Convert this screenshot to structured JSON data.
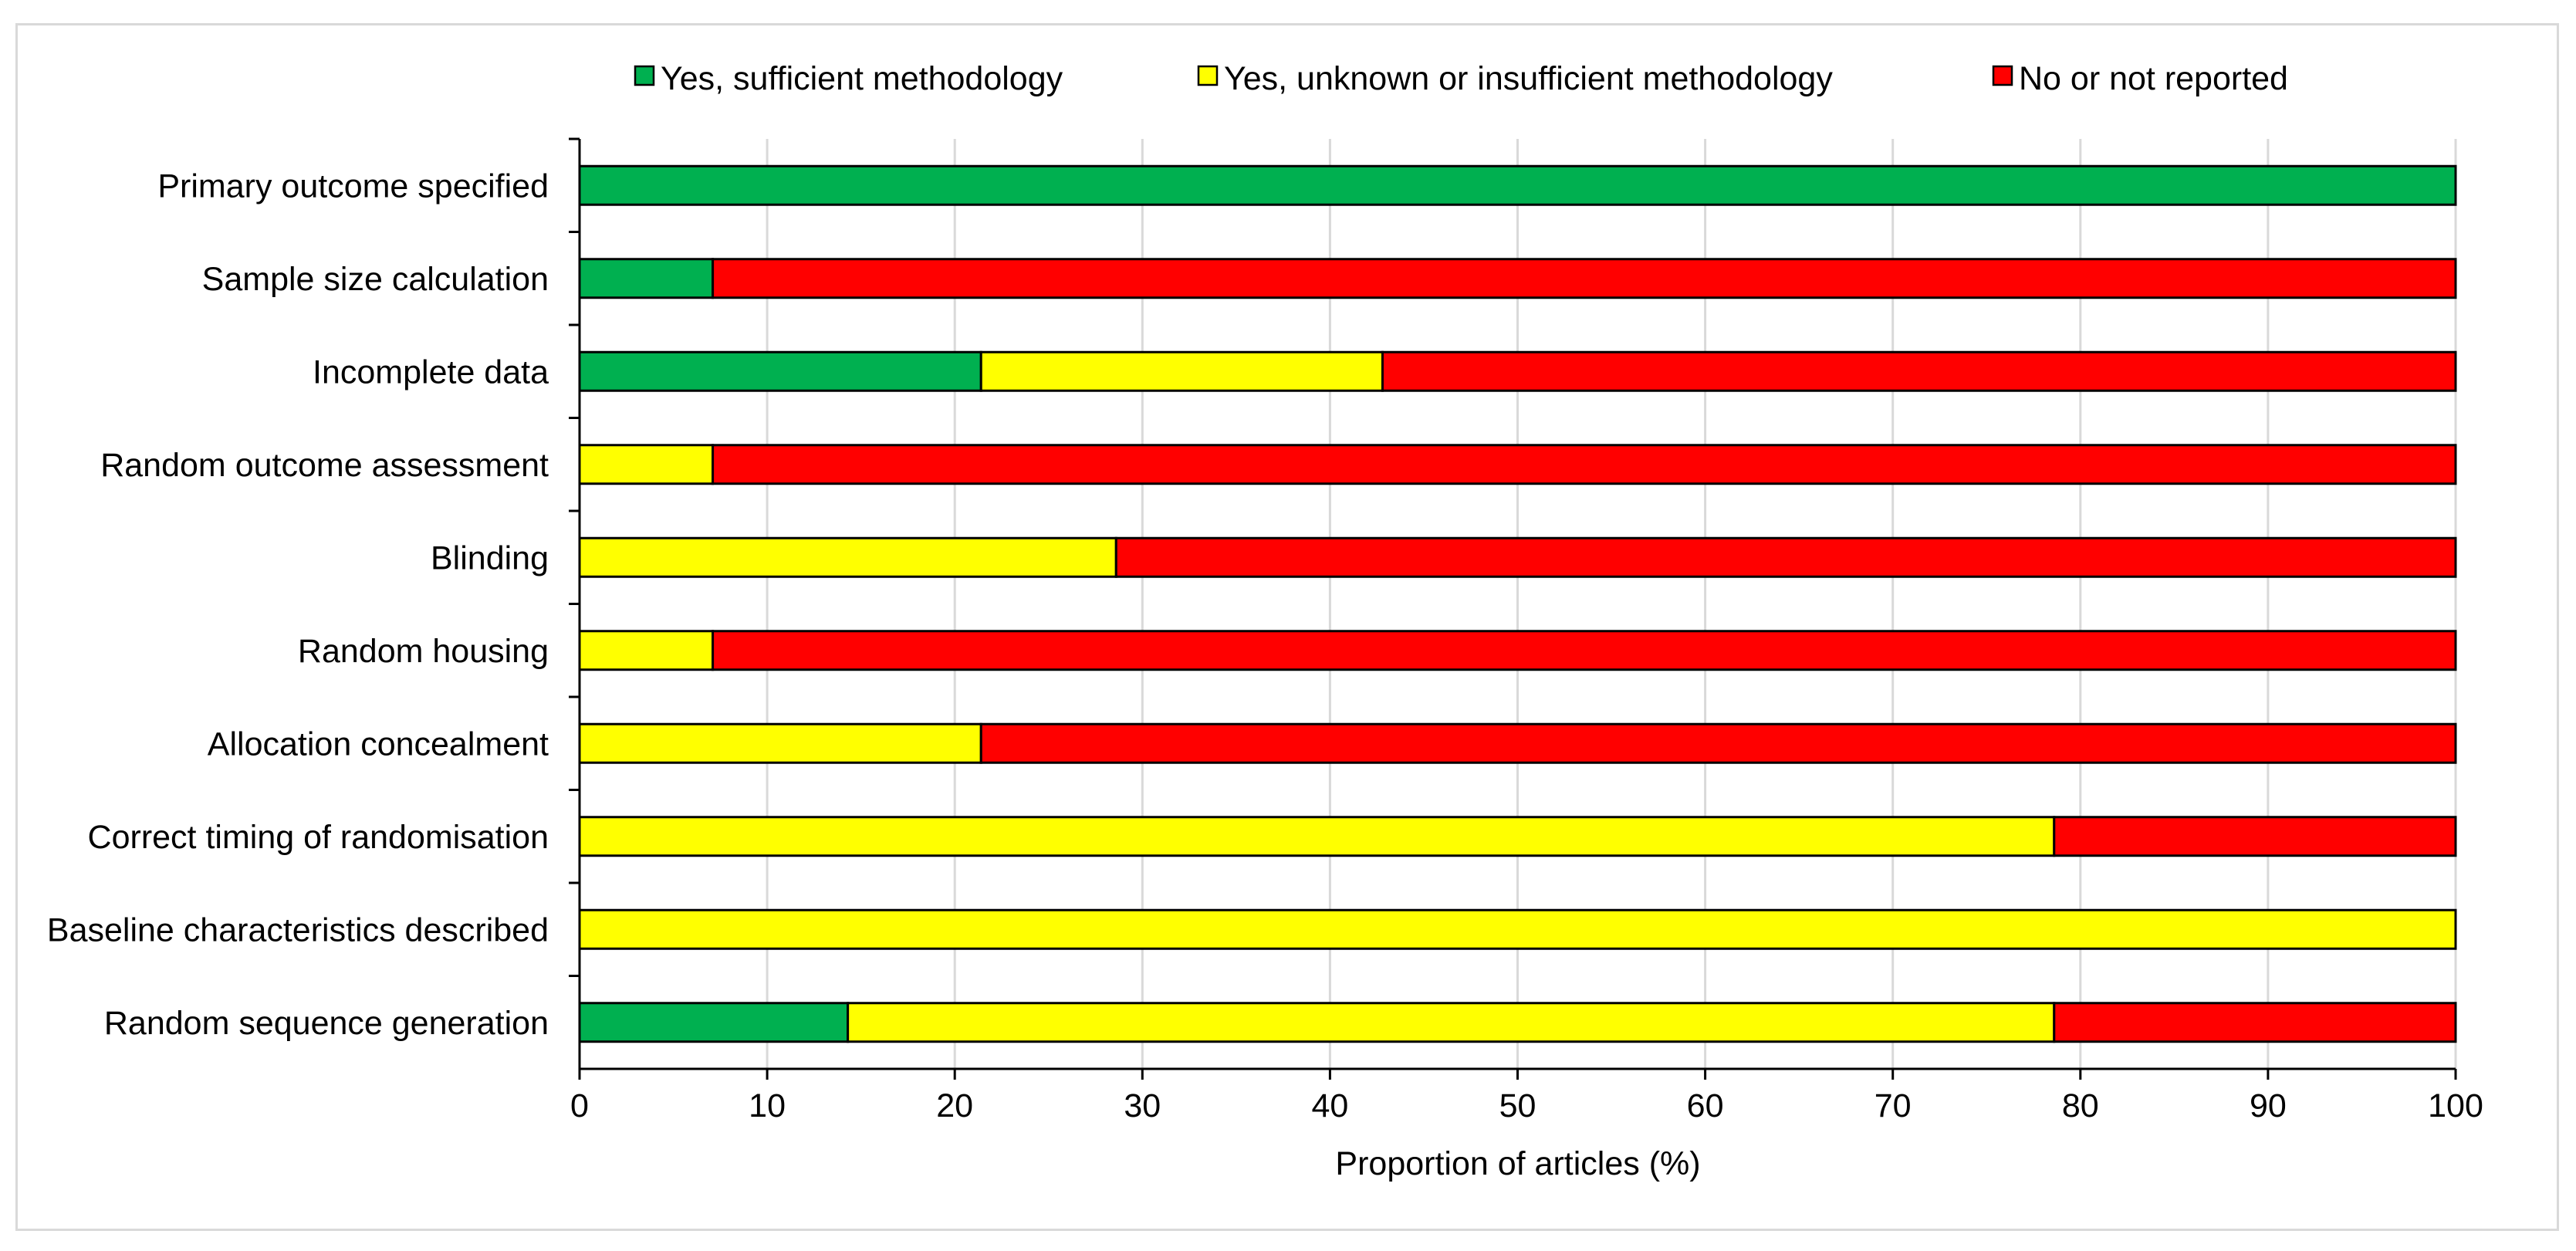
{
  "chart_data": {
    "type": "bar",
    "orientation": "horizontal",
    "stacked": true,
    "title": "",
    "xlabel": "Proportion of articles (%)",
    "ylabel": "",
    "xlim": [
      0,
      100
    ],
    "xticks": [
      0,
      10,
      20,
      30,
      40,
      50,
      60,
      70,
      80,
      90,
      100
    ],
    "grid": "vertical",
    "legend_position": "top",
    "categories": [
      "Primary outcome specified",
      "Sample size calculation",
      "Incomplete data",
      "Random outcome assessment",
      "Blinding",
      "Random housing",
      "Allocation concealment",
      "Correct timing of randomisation",
      "Baseline characteristics described",
      "Random sequence generation"
    ],
    "series": [
      {
        "name": "Yes, sufficient methodology",
        "color": "#00b050",
        "values": [
          100,
          7.1,
          21.4,
          0,
          0,
          0,
          0,
          0,
          0,
          14.3
        ]
      },
      {
        "name": "Yes, unknown or insufficient methodology",
        "color": "#ffff00",
        "values": [
          0,
          0,
          21.4,
          7.1,
          28.6,
          7.1,
          21.4,
          78.6,
          100,
          64.3
        ]
      },
      {
        "name": "No or not reported",
        "color": "#ff0000",
        "values": [
          0,
          92.9,
          57.2,
          92.9,
          71.4,
          92.9,
          78.6,
          21.4,
          0,
          21.4
        ]
      }
    ]
  }
}
